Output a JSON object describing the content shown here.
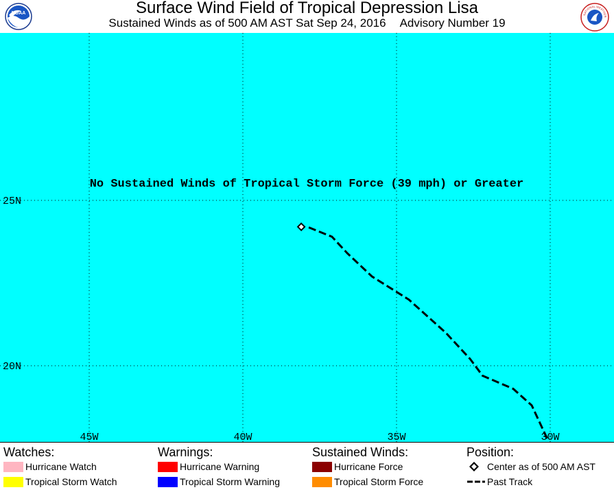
{
  "header": {
    "title": "Surface Wind Field of Tropical Depression Lisa",
    "subtitle_left": "Sustained Winds as of 500 AM AST Sat Sep 24, 2016",
    "subtitle_right": "Advisory Number 19",
    "left_logo_text": "NOAA",
    "right_logo_text": "NATIONAL WEATHER SERVICE",
    "left_logo_icon": "noaa-logo-icon",
    "right_logo_icon": "nws-logo-icon"
  },
  "map": {
    "background_color": "#00ffff",
    "message": "No Sustained Winds of Tropical Storm Force (39 mph) or Greater",
    "lat_labels": [
      "25N",
      "20N"
    ],
    "lon_labels": [
      "45W",
      "40W",
      "35W",
      "30W"
    ],
    "gridlines": {
      "latitudes": [
        25,
        20
      ],
      "longitudes": [
        -45,
        -40,
        -35,
        -30
      ]
    },
    "past_track": [
      {
        "lon": -30.1,
        "lat": 17.8
      },
      {
        "lon": -30.6,
        "lat": 18.8
      },
      {
        "lon": -31.2,
        "lat": 19.3
      },
      {
        "lon": -32.2,
        "lat": 19.7
      },
      {
        "lon": -32.6,
        "lat": 20.2
      },
      {
        "lon": -33.4,
        "lat": 21.0
      },
      {
        "lon": -34.6,
        "lat": 22.0
      },
      {
        "lon": -35.8,
        "lat": 22.7
      },
      {
        "lon": -36.6,
        "lat": 23.4
      },
      {
        "lon": -37.1,
        "lat": 23.9
      },
      {
        "lon": -37.9,
        "lat": 24.2
      }
    ],
    "center": {
      "lon": -38.1,
      "lat": 24.2
    }
  },
  "legend": {
    "watches": {
      "heading": "Watches:",
      "items": [
        {
          "label": "Hurricane Watch",
          "color": "#ffb6c1"
        },
        {
          "label": "Tropical Storm Watch",
          "color": "#ffff00"
        }
      ]
    },
    "warnings": {
      "heading": "Warnings:",
      "items": [
        {
          "label": "Hurricane Warning",
          "color": "#ff0000"
        },
        {
          "label": "Tropical Storm Warning",
          "color": "#0000ff"
        }
      ]
    },
    "winds": {
      "heading": "Sustained Winds:",
      "items": [
        {
          "label": "Hurricane Force",
          "color": "#8b0000"
        },
        {
          "label": "Tropical Storm Force",
          "color": "#ff8c00"
        }
      ]
    },
    "position": {
      "heading": "Position:",
      "items": [
        {
          "label": "Center as of 500 AM AST",
          "icon": "diamond-icon"
        },
        {
          "label": "Past Track",
          "icon": "dashed-line-icon"
        }
      ]
    }
  }
}
